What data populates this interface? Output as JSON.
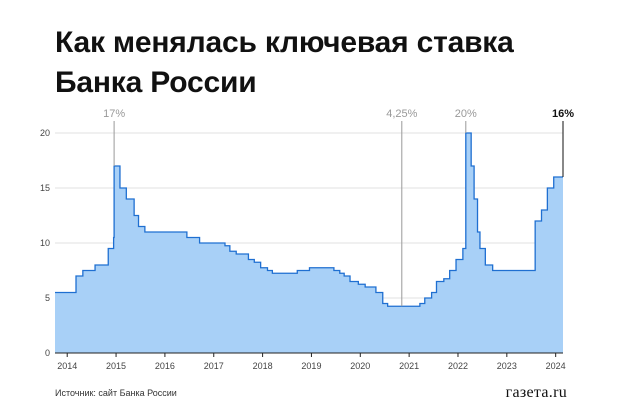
{
  "header": {
    "title_line1": "Как менялась ключевая ставка",
    "title_line2": "Банка России"
  },
  "footer": {
    "source": "Источник: сайт Банка России",
    "logo": "газета.ru"
  },
  "colors": {
    "area_fill": "#a8d0f7",
    "line": "#1f6fd1",
    "grid": "#e2e2e2",
    "annotation": "#999999",
    "annotation_bold": "#111111"
  },
  "chart_data": {
    "type": "area",
    "title": "Как менялась ключевая ставка Банка России",
    "xlabel": "",
    "ylabel": "",
    "xlim": [
      2013.75,
      2024.15
    ],
    "ylim": [
      0,
      21
    ],
    "grid": true,
    "step": true,
    "yticks": [
      0,
      5,
      10,
      15,
      20
    ],
    "xticks": [
      2014,
      2015,
      2016,
      2017,
      2018,
      2019,
      2020,
      2021,
      2022,
      2023,
      2024
    ],
    "series": [
      {
        "name": "",
        "points": [
          [
            2013.75,
            5.5
          ],
          [
            2014.18,
            7.0
          ],
          [
            2014.32,
            7.5
          ],
          [
            2014.57,
            8.0
          ],
          [
            2014.84,
            9.5
          ],
          [
            2014.95,
            10.5
          ],
          [
            2014.96,
            17.0
          ],
          [
            2015.08,
            15.0
          ],
          [
            2015.21,
            14.0
          ],
          [
            2015.37,
            12.5
          ],
          [
            2015.46,
            11.5
          ],
          [
            2015.59,
            11.0
          ],
          [
            2016.45,
            10.5
          ],
          [
            2016.71,
            10.0
          ],
          [
            2017.23,
            9.75
          ],
          [
            2017.33,
            9.25
          ],
          [
            2017.46,
            9.0
          ],
          [
            2017.71,
            8.5
          ],
          [
            2017.83,
            8.25
          ],
          [
            2017.96,
            7.75
          ],
          [
            2018.1,
            7.5
          ],
          [
            2018.2,
            7.25
          ],
          [
            2018.71,
            7.5
          ],
          [
            2018.96,
            7.75
          ],
          [
            2019.46,
            7.5
          ],
          [
            2019.58,
            7.25
          ],
          [
            2019.67,
            7.0
          ],
          [
            2019.79,
            6.5
          ],
          [
            2019.96,
            6.25
          ],
          [
            2020.1,
            6.0
          ],
          [
            2020.32,
            5.5
          ],
          [
            2020.46,
            4.5
          ],
          [
            2020.56,
            4.25
          ],
          [
            2021.22,
            4.5
          ],
          [
            2021.32,
            5.0
          ],
          [
            2021.46,
            5.5
          ],
          [
            2021.56,
            6.5
          ],
          [
            2021.71,
            6.75
          ],
          [
            2021.83,
            7.5
          ],
          [
            2021.96,
            8.5
          ],
          [
            2022.1,
            9.5
          ],
          [
            2022.16,
            20.0
          ],
          [
            2022.27,
            17.0
          ],
          [
            2022.33,
            14.0
          ],
          [
            2022.4,
            11.0
          ],
          [
            2022.45,
            9.5
          ],
          [
            2022.56,
            8.0
          ],
          [
            2022.71,
            7.5
          ],
          [
            2023.58,
            12.0
          ],
          [
            2023.71,
            13.0
          ],
          [
            2023.83,
            15.0
          ],
          [
            2023.96,
            16.0
          ],
          [
            2024.15,
            16.0
          ]
        ]
      }
    ],
    "annotations": [
      {
        "label": "17%",
        "x": 2014.96,
        "y": 17.0,
        "bold": false
      },
      {
        "label": "4,25%",
        "x": 2020.85,
        "y": 4.25,
        "bold": false
      },
      {
        "label": "20%",
        "x": 2022.16,
        "y": 20.0,
        "bold": false
      },
      {
        "label": "16%",
        "x": 2024.15,
        "y": 16.0,
        "bold": true
      }
    ]
  }
}
